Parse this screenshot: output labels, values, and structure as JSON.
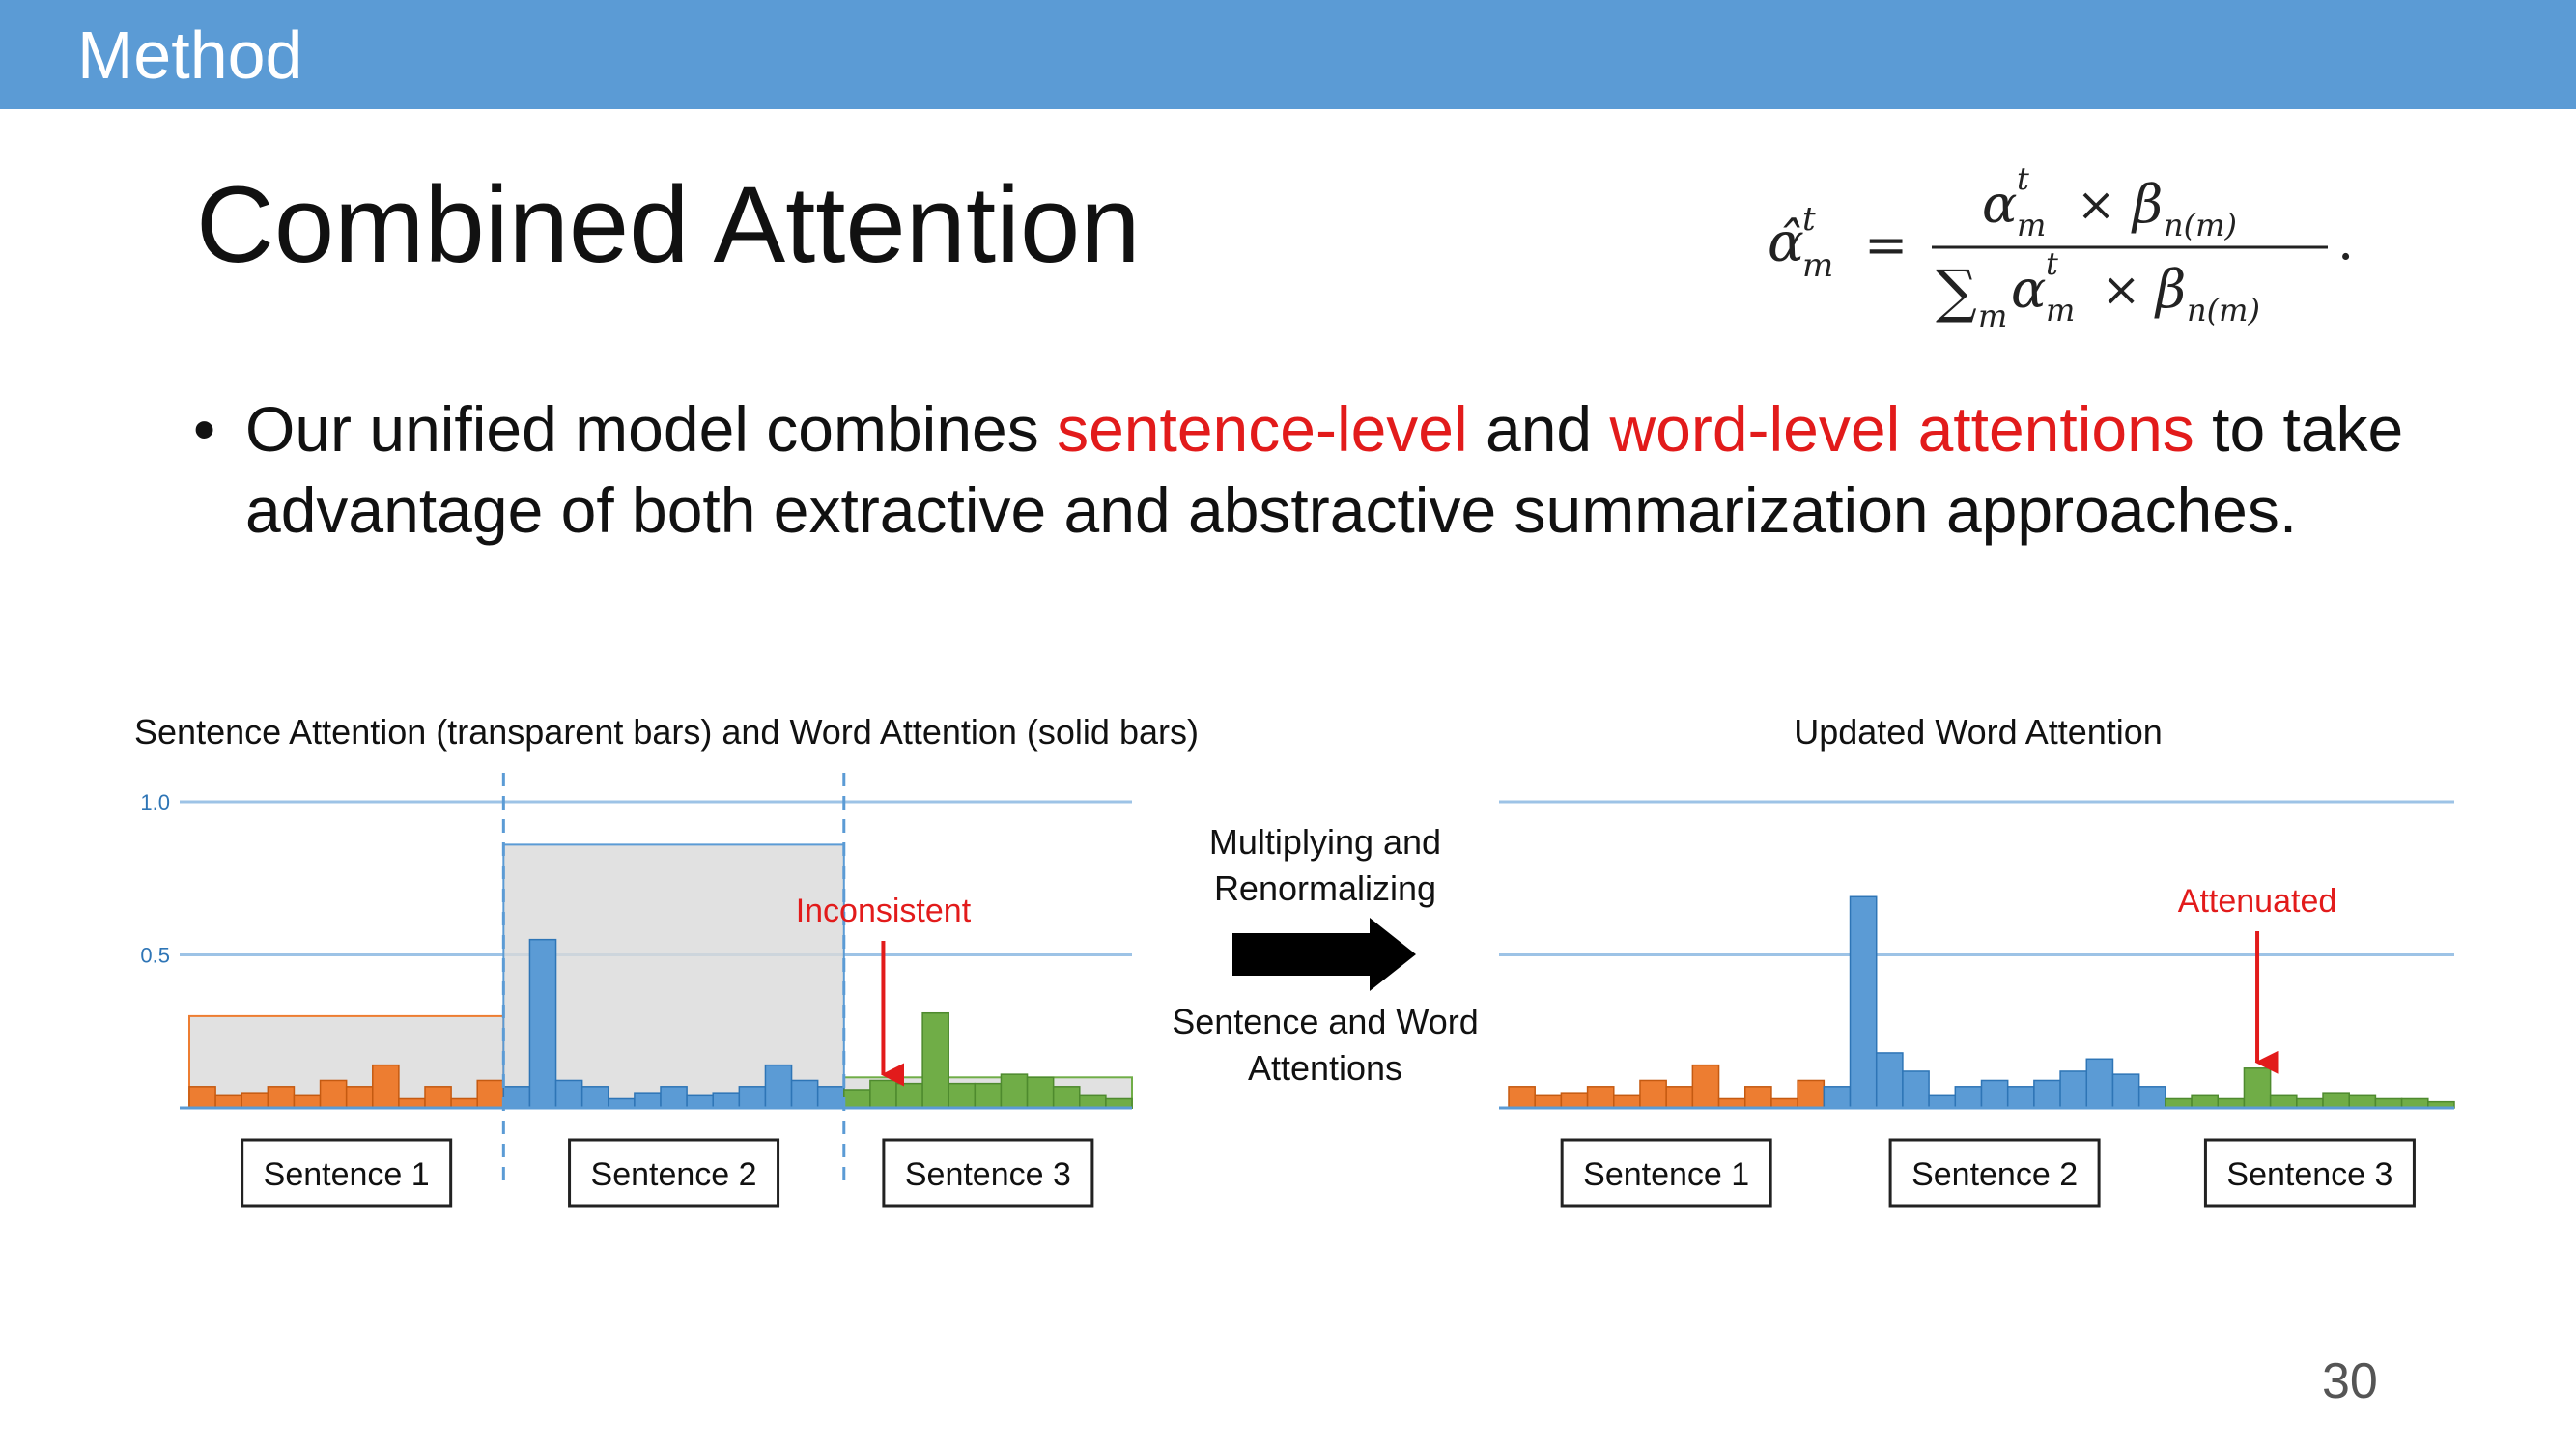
{
  "header": {
    "section": "Method"
  },
  "slide": {
    "title": "Combined Attention",
    "bullet": {
      "part1": "Our unified model combines ",
      "red1": "sentence-level",
      "part2": " and ",
      "red2": "word-level attentions",
      "part3": " to take advantage of both extractive and abstractive summarization approaches."
    },
    "page_number": "30"
  },
  "formula": {
    "lhs": "α̂",
    "lhs_sup": "t",
    "lhs_sub": "m",
    "equals": "=",
    "num_alpha": "α",
    "num_sup": "t",
    "num_sub": "m",
    "times": "×",
    "num_beta": "β",
    "num_beta_sub": "n(m)",
    "den_sum": "∑",
    "den_sum_sub": "m",
    "period": "."
  },
  "colors": {
    "header_bar": "#5b9bd5",
    "sentence1": "#ed7d31",
    "sentence2": "#5b9bd5",
    "sentence3": "#70ad47",
    "highlight_red": "#e21b1b",
    "sentence_bar_fill": "#d9d9d9",
    "gridline": "#9dc3e6"
  },
  "middle": {
    "label1": "Multiplying and",
    "label2": "Renormalizing",
    "label3": "Sentence and Word",
    "label4": "Attentions",
    "arrow_icon": "right-arrow-icon"
  },
  "chart_data": [
    {
      "type": "bar",
      "title": "Sentence Attention (transparent bars) and Word Attention (solid bars)",
      "ylim": [
        0,
        1.0
      ],
      "yticks": [
        "1.0",
        "0.5"
      ],
      "ytick_values": [
        1.0,
        0.5
      ],
      "grid": true,
      "annotation": "Inconsistent",
      "annotation_target": {
        "series": 2,
        "index": 1
      },
      "sentence_labels": [
        "Sentence 1",
        "Sentence 2",
        "Sentence 3"
      ],
      "sentence_attention": [
        0.3,
        0.86,
        0.1
      ],
      "series": [
        {
          "values": [
            0.07,
            0.04,
            0.05,
            0.07,
            0.04,
            0.09,
            0.07,
            0.14,
            0.03,
            0.07,
            0.03,
            0.09
          ]
        },
        {
          "values": [
            0.07,
            0.55,
            0.09,
            0.07,
            0.03,
            0.05,
            0.07,
            0.04,
            0.05,
            0.07,
            0.14,
            0.09,
            0.07
          ]
        },
        {
          "values": [
            0.06,
            0.09,
            0.08,
            0.31,
            0.08,
            0.08,
            0.11,
            0.1,
            0.07,
            0.04,
            0.03
          ]
        }
      ]
    },
    {
      "type": "bar",
      "title": "Updated Word Attention",
      "ylim": [
        0,
        1.0
      ],
      "grid": true,
      "annotation": "Attenuated",
      "annotation_target": {
        "series": 2,
        "index": 3
      },
      "sentence_labels": [
        "Sentence 1",
        "Sentence 2",
        "Sentence 3"
      ],
      "series": [
        {
          "values": [
            0.07,
            0.04,
            0.05,
            0.07,
            0.04,
            0.09,
            0.07,
            0.14,
            0.03,
            0.07,
            0.03,
            0.09
          ]
        },
        {
          "values": [
            0.07,
            0.69,
            0.18,
            0.12,
            0.04,
            0.07,
            0.09,
            0.07,
            0.09,
            0.12,
            0.16,
            0.11,
            0.07
          ]
        },
        {
          "values": [
            0.03,
            0.04,
            0.03,
            0.13,
            0.04,
            0.03,
            0.05,
            0.04,
            0.03,
            0.03,
            0.02
          ]
        }
      ]
    }
  ]
}
